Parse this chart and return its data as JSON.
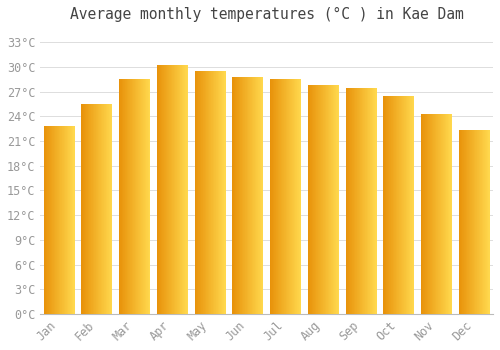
{
  "title": "Average monthly temperatures (°C ) in Kae Dam",
  "months": [
    "Jan",
    "Feb",
    "Mar",
    "Apr",
    "May",
    "Jun",
    "Jul",
    "Aug",
    "Sep",
    "Oct",
    "Nov",
    "Dec"
  ],
  "values": [
    22.8,
    25.5,
    28.5,
    30.2,
    29.5,
    28.8,
    28.5,
    27.8,
    27.5,
    26.5,
    24.3,
    22.3
  ],
  "bar_color_dark": "#E8920A",
  "bar_color_light": "#FFD84D",
  "background_color": "#ffffff",
  "grid_color": "#dddddd",
  "ytick_labels": [
    "0°C",
    "3°C",
    "6°C",
    "9°C",
    "12°C",
    "15°C",
    "18°C",
    "21°C",
    "24°C",
    "27°C",
    "30°C",
    "33°C"
  ],
  "ytick_values": [
    0,
    3,
    6,
    9,
    12,
    15,
    18,
    21,
    24,
    27,
    30,
    33
  ],
  "ylim": [
    0,
    34.5
  ],
  "title_fontsize": 10.5,
  "tick_fontsize": 8.5,
  "text_color": "#999999",
  "bar_width": 0.82,
  "n_gradient_steps": 50
}
